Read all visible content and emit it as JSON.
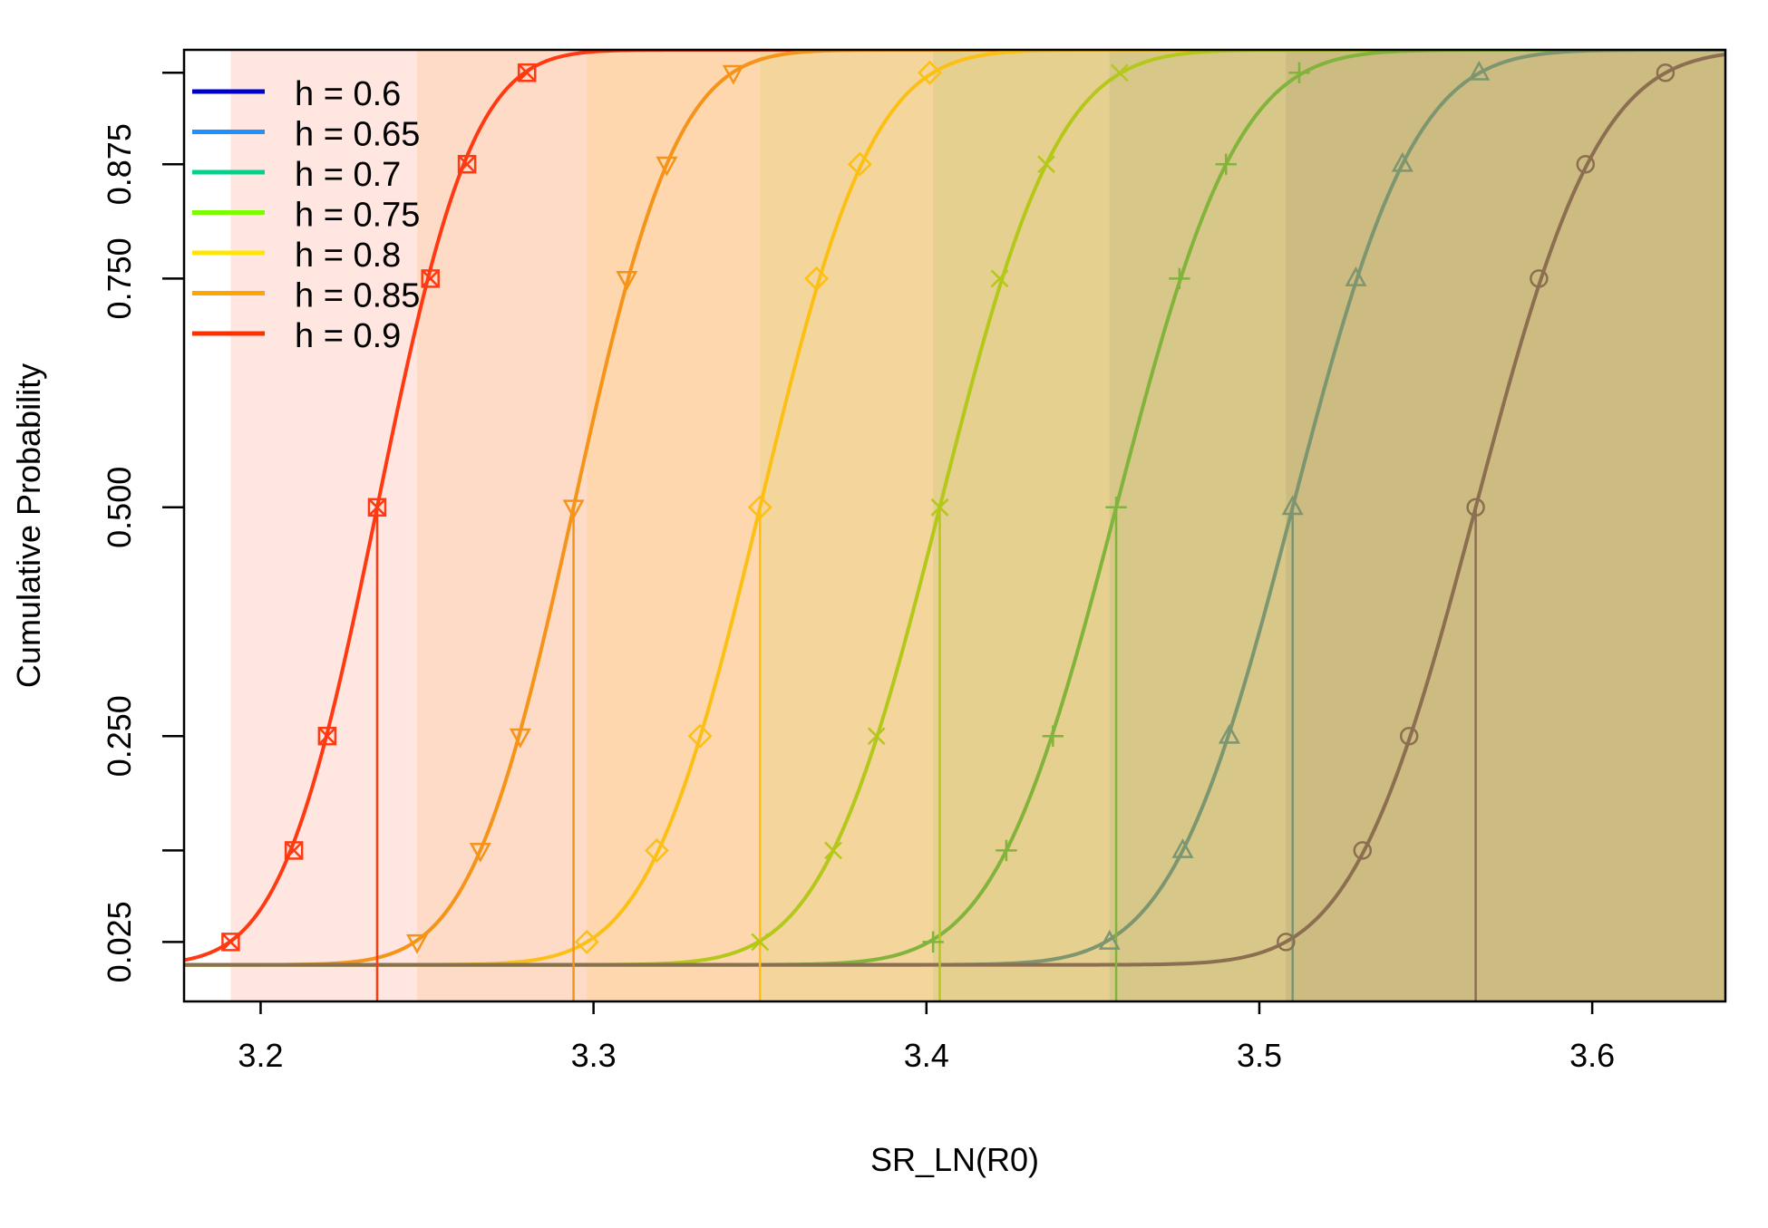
{
  "chart_data": {
    "type": "line",
    "title": "",
    "xlabel": "SR_LN(R0)",
    "ylabel": "Cumulative Probability",
    "xlim": [
      3.177,
      3.64
    ],
    "ylim": [
      -0.04,
      1.0
    ],
    "x_ticks": [
      3.2,
      3.3,
      3.4,
      3.5,
      3.6
    ],
    "x_tick_labels": [
      "3.2",
      "3.3",
      "3.4",
      "3.5",
      "3.6"
    ],
    "y_ticks": [
      0.025,
      0.125,
      0.25,
      0.5,
      0.75,
      0.875,
      0.975
    ],
    "y_tick_labels": [
      "0.025",
      "",
      "0.250",
      "0.500",
      "0.750",
      "0.875",
      ""
    ],
    "marker_probabilities": [
      0.025,
      0.125,
      0.25,
      0.5,
      0.75,
      0.875,
      0.975
    ],
    "grid": false,
    "legend": {
      "position": "top-left",
      "entries": [
        {
          "label": "h = 0.6",
          "color": "#0000cd"
        },
        {
          "label": "h = 0.65",
          "color": "#1e90ff"
        },
        {
          "label": "h = 0.7",
          "color": "#00d28c"
        },
        {
          "label": "h = 0.75",
          "color": "#7cfc00"
        },
        {
          "label": "h = 0.8",
          "color": "#ffe600"
        },
        {
          "label": "h = 0.85",
          "color": "#ffa500"
        },
        {
          "label": "h = 0.9",
          "color": "#ff3000"
        }
      ]
    },
    "series": [
      {
        "color": "#ff3a12",
        "marker": "boxx",
        "values": [
          3.191,
          3.21,
          3.22,
          3.235,
          3.251,
          3.262,
          3.28
        ]
      },
      {
        "color": "#f59418",
        "marker": "triangle-down",
        "values": [
          3.247,
          3.266,
          3.278,
          3.294,
          3.31,
          3.322,
          3.342
        ]
      },
      {
        "color": "#fcc014",
        "marker": "diamond",
        "values": [
          3.298,
          3.319,
          3.332,
          3.35,
          3.367,
          3.38,
          3.401
        ]
      },
      {
        "color": "#b4c81a",
        "marker": "x",
        "values": [
          3.35,
          3.372,
          3.385,
          3.404,
          3.422,
          3.436,
          3.458
        ]
      },
      {
        "color": "#82b43c",
        "marker": "plus",
        "values": [
          3.402,
          3.424,
          3.438,
          3.457,
          3.476,
          3.49,
          3.512
        ]
      },
      {
        "color": "#7d9670",
        "marker": "triangle-up",
        "values": [
          3.455,
          3.477,
          3.491,
          3.51,
          3.529,
          3.543,
          3.566
        ]
      },
      {
        "color": "#8c6e50",
        "marker": "circle",
        "values": [
          3.508,
          3.531,
          3.545,
          3.565,
          3.584,
          3.598,
          3.622
        ]
      }
    ]
  }
}
